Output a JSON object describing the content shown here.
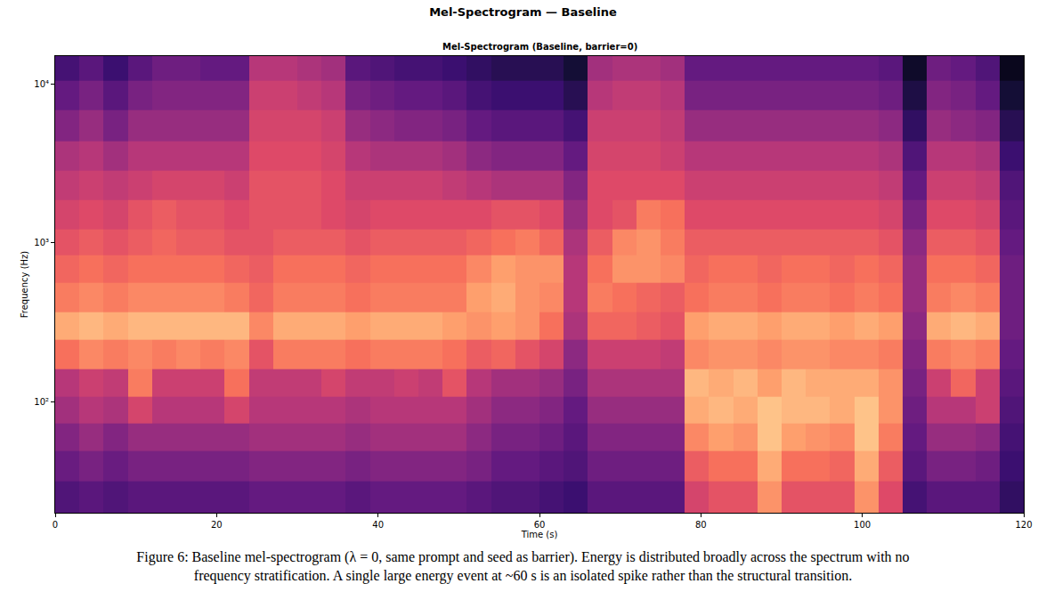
{
  "chart_data": {
    "type": "heatmap",
    "title": "Mel-Spectrogram — Baseline",
    "subtitle": "Mel-Spectrogram (Baseline, barrier=0)",
    "xlabel": "Time (s)",
    "ylabel": "Frequency (Hz)",
    "caption": "Figure 6: Baseline mel-spectrogram (λ = 0, same prompt and seed as barrier). Energy is distributed broadly across the spectrum with no frequency stratification. A single large energy event at ~60 s is an isolated spike rather than the structural transition.",
    "log": "y",
    "grid": false,
    "xlim": [
      0,
      120
    ],
    "xticks": [
      0,
      20,
      40,
      60,
      80,
      100,
      120
    ],
    "ylim": [
      20,
      15000
    ],
    "yticks": [
      {
        "value": 100,
        "label": "10²"
      },
      {
        "value": 1000,
        "label": "10³"
      },
      {
        "value": 10000,
        "label": "10⁴"
      }
    ],
    "zlim": [
      -80,
      0
    ],
    "x": [
      1.5,
      4.5,
      7.5,
      10.5,
      13.5,
      16.5,
      19.5,
      22.5,
      25.5,
      28.5,
      31.5,
      34.5,
      37.5,
      40.5,
      43.5,
      46.5,
      49.5,
      52.5,
      55.5,
      58.5,
      61.5,
      64.5,
      67.5,
      70.5,
      73.5,
      76.5,
      79.5,
      82.5,
      85.5,
      88.5,
      91.5,
      94.5,
      97.5,
      100.5,
      103.5,
      106.5,
      109.5,
      112.5,
      115.5,
      118.5
    ],
    "y": [
      25,
      40,
      60,
      90,
      130,
      200,
      300,
      450,
      700,
      1000,
      1500,
      2300,
      3500,
      5500,
      8500,
      13000
    ],
    "z": [
      [
        -60,
        -58,
        -60,
        -58,
        -58,
        -58,
        -58,
        -58,
        -56,
        -56,
        -56,
        -56,
        -58,
        -56,
        -56,
        -56,
        -56,
        -58,
        -60,
        -60,
        -62,
        -64,
        -58,
        -58,
        -58,
        -58,
        -34,
        -30,
        -30,
        -18,
        -30,
        -30,
        -30,
        -18,
        -32,
        -62,
        -58,
        -58,
        -58,
        -66
      ],
      [
        -55,
        -52,
        -55,
        -52,
        -52,
        -52,
        -52,
        -52,
        -50,
        -50,
        -50,
        -50,
        -52,
        -50,
        -50,
        -50,
        -50,
        -52,
        -56,
        -56,
        -58,
        -60,
        -54,
        -54,
        -54,
        -54,
        -28,
        -24,
        -24,
        -14,
        -24,
        -24,
        -26,
        -14,
        -28,
        -58,
        -52,
        -52,
        -54,
        -64
      ],
      [
        -50,
        -46,
        -50,
        -46,
        -46,
        -46,
        -46,
        -46,
        -44,
        -44,
        -44,
        -44,
        -46,
        -44,
        -44,
        -44,
        -44,
        -48,
        -52,
        -52,
        -54,
        -58,
        -50,
        -50,
        -50,
        -50,
        -20,
        -16,
        -18,
        -10,
        -16,
        -18,
        -20,
        -10,
        -22,
        -56,
        -46,
        -46,
        -48,
        -62
      ],
      [
        -44,
        -40,
        -42,
        -34,
        -40,
        -40,
        -40,
        -34,
        -40,
        -40,
        -40,
        -40,
        -42,
        -40,
        -40,
        -40,
        -40,
        -44,
        -48,
        -48,
        -50,
        -56,
        -46,
        -46,
        -46,
        -46,
        -14,
        -12,
        -14,
        -10,
        -12,
        -12,
        -14,
        -10,
        -18,
        -54,
        -40,
        -40,
        -36,
        -60
      ],
      [
        -40,
        -36,
        -38,
        -22,
        -36,
        -36,
        -36,
        -24,
        -38,
        -38,
        -38,
        -34,
        -38,
        -38,
        -36,
        -38,
        -30,
        -40,
        -44,
        -44,
        -46,
        -52,
        -42,
        -42,
        -42,
        -42,
        -12,
        -14,
        -12,
        -16,
        -12,
        -14,
        -14,
        -14,
        -18,
        -52,
        -36,
        -26,
        -36,
        -58
      ],
      [
        -24,
        -20,
        -22,
        -20,
        -22,
        -20,
        -22,
        -20,
        -30,
        -22,
        -22,
        -22,
        -24,
        -22,
        -22,
        -22,
        -24,
        -28,
        -26,
        -30,
        -34,
        -48,
        -36,
        -36,
        -36,
        -38,
        -20,
        -18,
        -18,
        -20,
        -18,
        -18,
        -20,
        -20,
        -22,
        -50,
        -22,
        -20,
        -22,
        -56
      ],
      [
        -14,
        -12,
        -14,
        -12,
        -12,
        -12,
        -12,
        -12,
        -20,
        -14,
        -14,
        -14,
        -16,
        -14,
        -14,
        -14,
        -16,
        -18,
        -16,
        -18,
        -24,
        -42,
        -26,
        -26,
        -28,
        -30,
        -16,
        -14,
        -14,
        -16,
        -14,
        -14,
        -16,
        -14,
        -16,
        -48,
        -14,
        -12,
        -14,
        -54
      ],
      [
        -22,
        -20,
        -22,
        -20,
        -20,
        -20,
        -20,
        -22,
        -26,
        -22,
        -22,
        -22,
        -24,
        -22,
        -22,
        -22,
        -22,
        -16,
        -14,
        -18,
        -20,
        -40,
        -22,
        -24,
        -26,
        -28,
        -24,
        -22,
        -22,
        -24,
        -22,
        -22,
        -24,
        -22,
        -24,
        -46,
        -22,
        -20,
        -22,
        -54
      ],
      [
        -26,
        -24,
        -26,
        -24,
        -24,
        -24,
        -24,
        -26,
        -28,
        -24,
        -24,
        -24,
        -26,
        -24,
        -24,
        -24,
        -24,
        -20,
        -16,
        -18,
        -18,
        -40,
        -24,
        -18,
        -18,
        -20,
        -26,
        -24,
        -24,
        -26,
        -24,
        -24,
        -26,
        -24,
        -26,
        -46,
        -24,
        -24,
        -26,
        -54
      ],
      [
        -30,
        -28,
        -30,
        -28,
        -26,
        -28,
        -28,
        -30,
        -30,
        -28,
        -28,
        -28,
        -30,
        -28,
        -28,
        -28,
        -28,
        -26,
        -24,
        -22,
        -26,
        -42,
        -28,
        -20,
        -18,
        -22,
        -28,
        -28,
        -28,
        -28,
        -28,
        -28,
        -28,
        -28,
        -30,
        -48,
        -28,
        -28,
        -30,
        -56
      ],
      [
        -34,
        -32,
        -34,
        -30,
        -28,
        -30,
        -30,
        -32,
        -30,
        -30,
        -30,
        -32,
        -34,
        -32,
        -32,
        -32,
        -32,
        -32,
        -30,
        -30,
        -32,
        -46,
        -32,
        -30,
        -22,
        -24,
        -32,
        -32,
        -32,
        -32,
        -32,
        -32,
        -32,
        -32,
        -34,
        -52,
        -32,
        -32,
        -34,
        -58
      ],
      [
        -38,
        -36,
        -38,
        -36,
        -34,
        -34,
        -34,
        -36,
        -30,
        -30,
        -30,
        -32,
        -36,
        -36,
        -36,
        -36,
        -38,
        -40,
        -42,
        -42,
        -42,
        -50,
        -32,
        -32,
        -32,
        -32,
        -36,
        -36,
        -36,
        -36,
        -36,
        -36,
        -36,
        -36,
        -38,
        -56,
        -36,
        -36,
        -38,
        -60
      ],
      [
        -42,
        -40,
        -44,
        -40,
        -40,
        -40,
        -40,
        -40,
        -32,
        -32,
        -32,
        -34,
        -40,
        -42,
        -42,
        -42,
        -44,
        -48,
        -50,
        -50,
        -50,
        -56,
        -34,
        -34,
        -34,
        -36,
        -40,
        -40,
        -40,
        -40,
        -40,
        -40,
        -40,
        -40,
        -42,
        -60,
        -40,
        -40,
        -42,
        -64
      ],
      [
        -50,
        -46,
        -52,
        -46,
        -46,
        -46,
        -46,
        -46,
        -34,
        -34,
        -34,
        -36,
        -46,
        -48,
        -50,
        -50,
        -52,
        -56,
        -58,
        -58,
        -58,
        -62,
        -36,
        -36,
        -36,
        -38,
        -46,
        -46,
        -46,
        -46,
        -46,
        -46,
        -46,
        -46,
        -48,
        -66,
        -46,
        -48,
        -50,
        -68
      ],
      [
        -56,
        -52,
        -58,
        -52,
        -50,
        -50,
        -50,
        -50,
        -36,
        -36,
        -38,
        -40,
        -52,
        -54,
        -56,
        -56,
        -58,
        -62,
        -64,
        -64,
        -64,
        -68,
        -40,
        -38,
        -38,
        -40,
        -52,
        -52,
        -52,
        -52,
        -52,
        -52,
        -52,
        -52,
        -54,
        -70,
        -50,
        -52,
        -56,
        -72
      ],
      [
        -62,
        -58,
        -64,
        -58,
        -54,
        -54,
        -56,
        -56,
        -40,
        -40,
        -42,
        -44,
        -58,
        -60,
        -62,
        -62,
        -64,
        -66,
        -68,
        -68,
        -68,
        -72,
        -44,
        -42,
        -42,
        -44,
        -56,
        -56,
        -56,
        -56,
        -56,
        -56,
        -56,
        -56,
        -58,
        -74,
        -54,
        -56,
        -60,
        -76
      ]
    ]
  }
}
